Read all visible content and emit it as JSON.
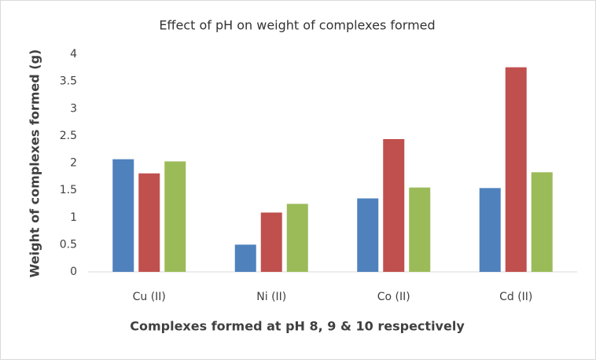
{
  "chart_data": {
    "type": "bar",
    "title": "Effect of pH on weight of complexes formed",
    "x_label": "Complexes formed at  pH 8, 9 & 10 respectively",
    "y_label": "Weight of complexes formed (g)",
    "categories": [
      "Cu (II)",
      "Ni (II)",
      "Co (II)",
      "Cd (II)"
    ],
    "series": [
      {
        "color": "#4f81bd",
        "values": [
          2.07,
          0.5,
          1.35,
          1.54
        ]
      },
      {
        "color": "#c0504d",
        "values": [
          1.81,
          1.09,
          2.44,
          3.76
        ]
      },
      {
        "color": "#9bbb59",
        "values": [
          2.03,
          1.25,
          1.55,
          1.83
        ]
      }
    ],
    "ylim": [
      0,
      4
    ],
    "yticks": [
      0,
      0.5,
      1,
      1.5,
      2,
      2.5,
      3,
      3.5,
      4
    ],
    "grid": false
  }
}
